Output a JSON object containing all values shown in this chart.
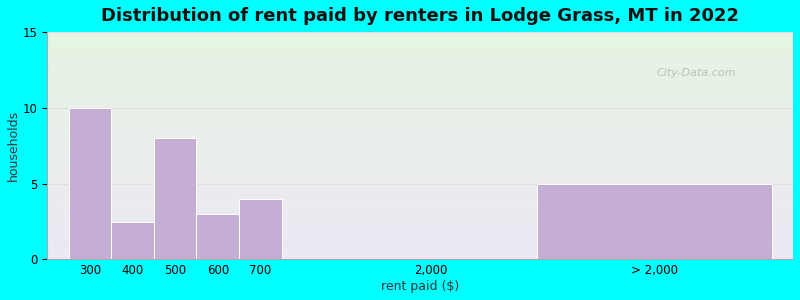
{
  "title": "Distribution of rent paid by renters in Lodge Grass, MT in 2022",
  "xlabel": "rent paid ($)",
  "ylabel": "households",
  "background_outer": "#00FFFF",
  "bar_color": "#c5aed4",
  "bar_edgecolor": "#ffffff",
  "ylim": [
    0,
    15
  ],
  "yticks": [
    0,
    5,
    10,
    15
  ],
  "values": [
    10,
    2.5,
    8,
    3,
    4,
    0,
    5
  ],
  "watermark": "City-Data.com",
  "title_fontsize": 13,
  "axis_label_fontsize": 9,
  "tick_fontsize": 8.5,
  "bg_top_color": "#e6f5e2",
  "bg_bottom_color": "#ede8f5",
  "grid_color": "#e0dde8"
}
